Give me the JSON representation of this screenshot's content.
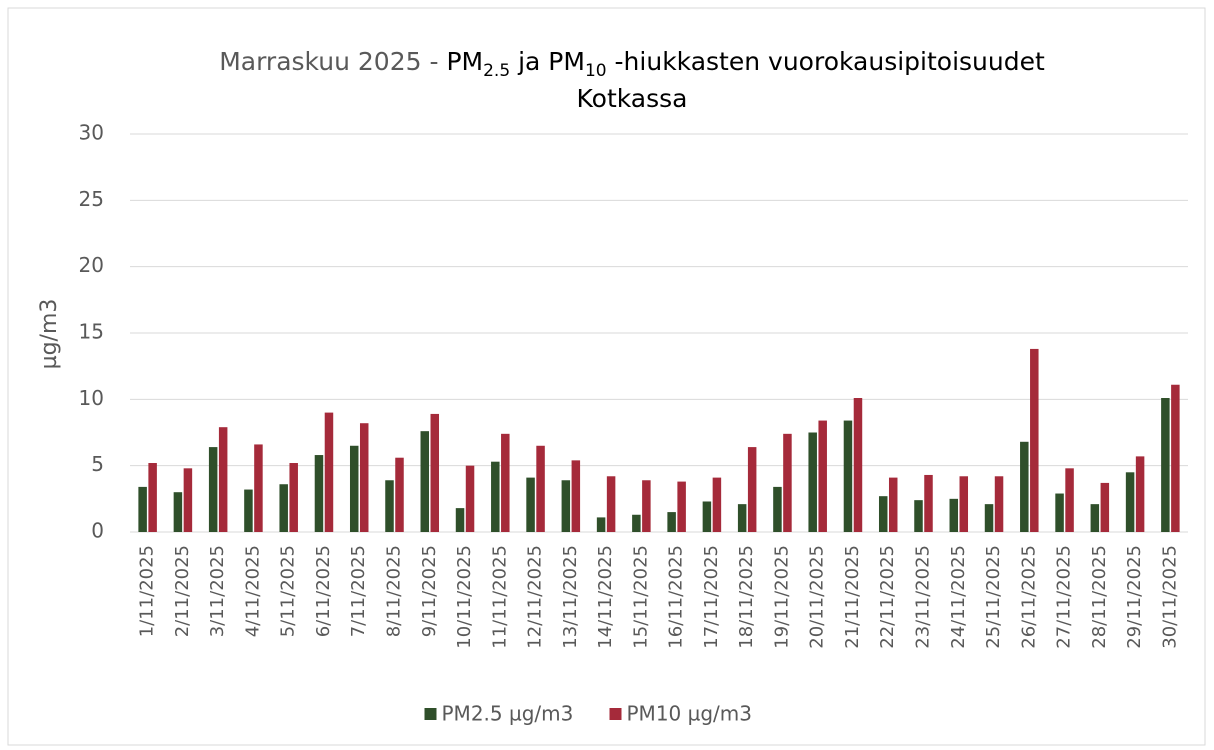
{
  "chart_data": {
    "type": "bar",
    "title": [
      "Marraskuu 2025 - ",
      "PM",
      "2.5",
      " ja PM",
      "10",
      " -hiukkasten vuorokausipitoisuudet",
      "Kotkassa"
    ],
    "ylabel": "µg/m3",
    "categories": [
      "1/11/2025",
      "2/11/2025",
      "3/11/2025",
      "4/11/2025",
      "5/11/2025",
      "6/11/2025",
      "7/11/2025",
      "8/11/2025",
      "9/11/2025",
      "10/11/2025",
      "11/11/2025",
      "12/11/2025",
      "13/11/2025",
      "14/11/2025",
      "15/11/2025",
      "16/11/2025",
      "17/11/2025",
      "18/11/2025",
      "19/11/2025",
      "20/11/2025",
      "21/11/2025",
      "22/11/2025",
      "23/11/2025",
      "24/11/2025",
      "25/11/2025",
      "26/11/2025",
      "27/11/2025",
      "28/11/2025",
      "29/11/2025",
      "30/11/2025"
    ],
    "series": [
      {
        "name": "PM2.5 µg/m3",
        "color": "#2f4f2a",
        "values": [
          3.4,
          3.0,
          6.4,
          3.2,
          3.6,
          5.8,
          6.5,
          3.9,
          7.6,
          1.8,
          5.3,
          4.1,
          3.9,
          1.1,
          1.3,
          1.5,
          2.3,
          2.1,
          3.4,
          7.5,
          8.4,
          2.7,
          2.4,
          2.5,
          2.1,
          6.8,
          2.9,
          2.1,
          4.5,
          10.1
        ]
      },
      {
        "name": "PM10 µg/m3",
        "color": "#a52a3a",
        "values": [
          5.2,
          4.8,
          7.9,
          6.6,
          5.2,
          9.0,
          8.2,
          5.6,
          8.9,
          5.0,
          7.4,
          6.5,
          5.4,
          4.2,
          3.9,
          3.8,
          4.1,
          6.4,
          7.4,
          8.4,
          10.1,
          4.1,
          4.3,
          4.2,
          4.2,
          13.8,
          4.8,
          3.7,
          5.7,
          11.1
        ]
      }
    ],
    "ylim": [
      0,
      30
    ],
    "yticks": [
      0,
      5,
      10,
      15,
      20,
      25,
      30
    ],
    "grid": true,
    "legend": "bottom"
  }
}
